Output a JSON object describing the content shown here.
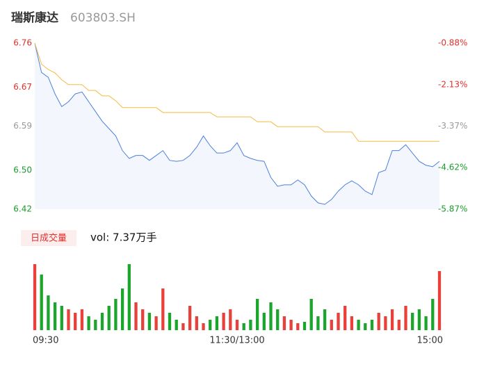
{
  "header": {
    "name": "瑞斯康达",
    "code": "603803.SH"
  },
  "chart_data": [
    {
      "type": "line",
      "ylim": [
        6.42,
        6.76
      ],
      "yticks": [
        {
          "value": 6.42,
          "label": "6.42"
        },
        {
          "value": 6.5,
          "label": "6.50"
        },
        {
          "value": 6.59,
          "label": "6.59"
        },
        {
          "value": 6.67,
          "label": "6.67"
        },
        {
          "value": 6.76,
          "label": "6.76"
        }
      ],
      "y2lim": [
        -5.87,
        -0.88
      ],
      "y2ticks": [
        {
          "value": -5.87,
          "label": "-5.87%"
        },
        {
          "value": -4.62,
          "label": "-4.62%"
        },
        {
          "value": -3.37,
          "label": "-3.37%"
        },
        {
          "value": -2.13,
          "label": "-2.13%"
        },
        {
          "value": -0.88,
          "label": "-0.88%"
        }
      ],
      "tick_colors": [
        "#1a9c2c",
        "#1a9c2c",
        "#999999",
        "#e0302c",
        "#e0302c"
      ],
      "xticks": [
        {
          "value": 0,
          "label": "09:30"
        },
        {
          "value": 30,
          "label": "11:30/13:00"
        },
        {
          "value": 60,
          "label": "15:00"
        }
      ],
      "series": [
        {
          "color": "#4a7fe0",
          "values": [
            6.76,
            6.7,
            6.69,
            6.656,
            6.63,
            6.64,
            6.656,
            6.66,
            6.64,
            6.62,
            6.6,
            6.585,
            6.57,
            6.54,
            6.524,
            6.53,
            6.53,
            6.52,
            6.53,
            6.54,
            6.52,
            6.518,
            6.52,
            6.53,
            6.547,
            6.57,
            6.55,
            6.535,
            6.535,
            6.54,
            6.556,
            6.53,
            6.524,
            6.52,
            6.518,
            6.485,
            6.467,
            6.47,
            6.47,
            6.48,
            6.47,
            6.447,
            6.433,
            6.43,
            6.44,
            6.457,
            6.47,
            6.478,
            6.47,
            6.457,
            6.45,
            6.495,
            6.5,
            6.54,
            6.54,
            6.552,
            6.535,
            6.518,
            6.51,
            6.507,
            6.518
          ]
        },
        {
          "color": "#f5b942",
          "values": [
            6.76,
            6.717,
            6.706,
            6.699,
            6.685,
            6.675,
            6.675,
            6.675,
            6.663,
            6.663,
            6.652,
            6.652,
            6.642,
            6.628,
            6.628,
            6.628,
            6.628,
            6.628,
            6.628,
            6.618,
            6.618,
            6.618,
            6.618,
            6.618,
            6.618,
            6.618,
            6.618,
            6.609,
            6.609,
            6.609,
            6.609,
            6.609,
            6.609,
            6.599,
            6.599,
            6.599,
            6.589,
            6.589,
            6.589,
            6.589,
            6.589,
            6.589,
            6.589,
            6.578,
            6.578,
            6.578,
            6.578,
            6.578,
            6.559,
            6.559,
            6.559,
            6.559,
            6.559,
            6.559,
            6.559,
            6.559,
            6.559,
            6.559,
            6.559,
            6.559,
            6.559
          ]
        }
      ]
    },
    {
      "type": "bar",
      "legend": "日成交量",
      "vol_label": "vol: 7.37万手",
      "ylim": [
        0,
        100
      ],
      "up_color": "#e8413b",
      "down_color": "#1ca52c",
      "values": [
        95,
        80,
        50,
        40,
        35,
        30,
        25,
        30,
        20,
        15,
        25,
        35,
        45,
        60,
        95,
        40,
        30,
        25,
        20,
        60,
        25,
        15,
        10,
        35,
        20,
        10,
        15,
        20,
        25,
        30,
        15,
        10,
        15,
        45,
        25,
        40,
        30,
        20,
        15,
        10,
        12,
        45,
        20,
        30,
        15,
        25,
        35,
        20,
        15,
        10,
        15,
        25,
        20,
        30,
        15,
        35,
        25,
        30,
        20,
        45,
        85
      ]
    }
  ]
}
